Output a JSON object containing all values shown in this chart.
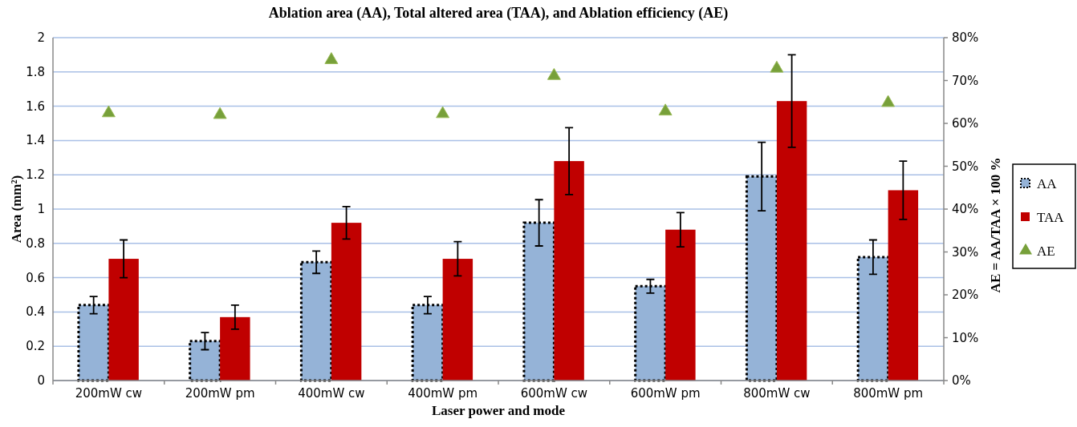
{
  "chart_data": {
    "type": "bar",
    "title": "Ablation area (AA), Total altered area (TAA), and Ablation efficiency (AE)",
    "xlabel": "Laser power and mode",
    "ylabel": "Area (mm²)",
    "y2label": "AE = AA/TAA × 100 %",
    "categories": [
      "200mW cw",
      "200mW pm",
      "400mW cw",
      "400mW pm",
      "600mW cw",
      "600mW pm",
      "800mW cw",
      "800mW pm"
    ],
    "series": [
      {
        "name": "AA",
        "color": "#95b3d7",
        "values": [
          0.44,
          0.23,
          0.69,
          0.44,
          0.92,
          0.55,
          1.19,
          0.72
        ],
        "errors": [
          0.05,
          0.05,
          0.065,
          0.05,
          0.135,
          0.04,
          0.2,
          0.1
        ]
      },
      {
        "name": "TAA",
        "color": "#c00000",
        "values": [
          0.71,
          0.37,
          0.92,
          0.71,
          1.28,
          0.88,
          1.63,
          1.11
        ],
        "errors": [
          0.11,
          0.07,
          0.095,
          0.1,
          0.195,
          0.1,
          0.27,
          0.17
        ]
      },
      {
        "name": "AE",
        "type": "scatter",
        "axis": "y2",
        "color": "#77a03a",
        "values": [
          62.4,
          62.0,
          74.8,
          62.2,
          71.1,
          62.8,
          72.8,
          64.8
        ]
      }
    ],
    "ylim": [
      0,
      2
    ],
    "yticks": [
      0,
      0.2,
      0.4,
      0.6,
      0.8,
      1,
      1.2,
      1.4,
      1.6,
      1.8,
      2
    ],
    "y2lim": [
      0,
      80
    ],
    "y2ticks": [
      {
        "value": 0,
        "label": "0%"
      },
      {
        "value": 10,
        "label": "10%"
      },
      {
        "value": 20,
        "label": "20%"
      },
      {
        "value": 30,
        "label": "30%"
      },
      {
        "value": 40,
        "label": "40%"
      },
      {
        "value": 50,
        "label": "50%"
      },
      {
        "value": 60,
        "label": "60%"
      },
      {
        "value": 70,
        "label": "70%"
      },
      {
        "value": 80,
        "label": "80%"
      }
    ],
    "grid": "y",
    "legend": "right",
    "marker": "triangle"
  }
}
